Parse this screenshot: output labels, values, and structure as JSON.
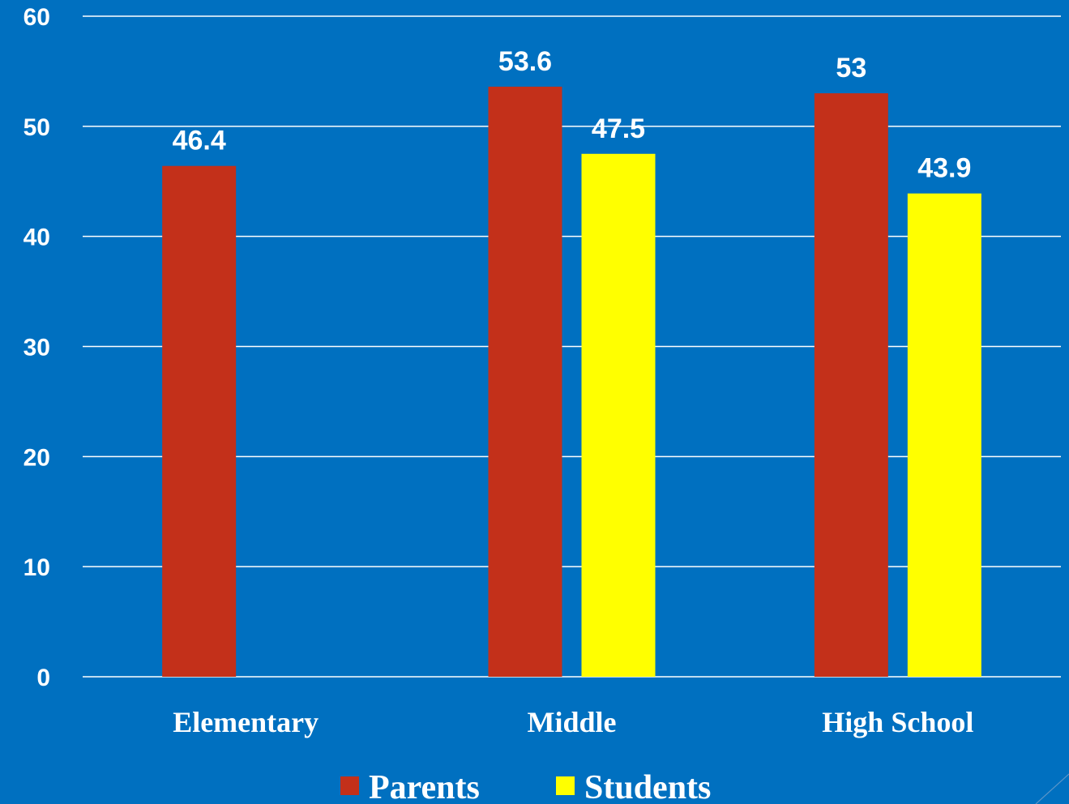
{
  "chart_data": {
    "type": "bar",
    "categories": [
      "Elementary",
      "Middle",
      "High School"
    ],
    "series": [
      {
        "name": "Parents",
        "values": [
          46.4,
          53.6,
          53
        ],
        "color": "#c3301a"
      },
      {
        "name": "Students",
        "values": [
          null,
          47.5,
          43.9
        ],
        "color": "#ffff00"
      }
    ],
    "data_labels": [
      [
        "46.4",
        "53.6",
        "53"
      ],
      [
        null,
        "47.5",
        "43.9"
      ]
    ],
    "yticks": [
      "0",
      "10",
      "20",
      "30",
      "40",
      "50",
      "60"
    ],
    "ylim": [
      0,
      60
    ],
    "grid": true,
    "legend_position": "bottom",
    "background_color": "#0070c0",
    "title": "",
    "xlabel": "",
    "ylabel": ""
  }
}
